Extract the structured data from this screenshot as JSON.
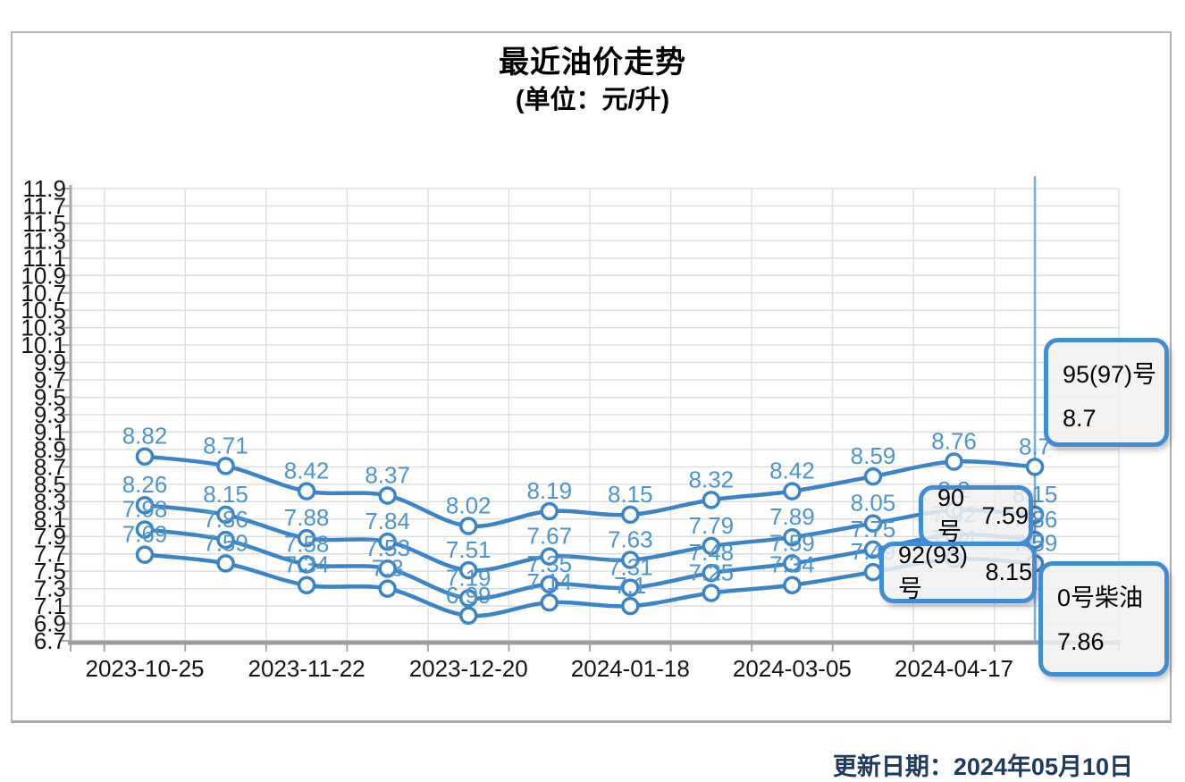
{
  "title": "最近油价走势",
  "subtitle": "(单位：元/升)",
  "update_note": "更新日期：2024年05月10日",
  "chart_data": {
    "type": "line",
    "title": "最近油价走势",
    "unit": "元/升",
    "num_points": 12,
    "x_tick_labels": [
      "2023-10-25",
      "2023-11-22",
      "2023-12-20",
      "2024-01-18",
      "2024-03-05",
      "2024-04-17"
    ],
    "x_label_point_indices": [
      0,
      2,
      4,
      6,
      8,
      10
    ],
    "y_axis": {
      "min": 6.7,
      "max": 11.9,
      "step": 0.2,
      "tick_labels": [
        "11.9",
        "11.7",
        "11.5",
        "11.3",
        "11.1",
        "10.9",
        "10.7",
        "10.5",
        "10.3",
        "10.1",
        "9.9",
        "9.7",
        "9.5",
        "9.3",
        "9.1",
        "8.9",
        "8.7",
        "8.5",
        "8.3",
        "8.1",
        "7.9",
        "7.7",
        "7.5",
        "7.3",
        "7.1",
        "6.9",
        "6.7"
      ]
    },
    "grid": true,
    "legend_position": "none",
    "crosshair_point_index": 11,
    "line_color": "#3b84c7",
    "series": [
      {
        "name": "95(97)号",
        "values": [
          8.82,
          8.71,
          8.42,
          8.37,
          8.02,
          8.19,
          8.15,
          8.32,
          8.42,
          8.59,
          8.76,
          8.7
        ],
        "labels": [
          "8.82",
          "8.71",
          "8.42",
          "8.37",
          "8.02",
          "8.19",
          "8.15",
          "8.32",
          "8.42",
          "8.59",
          "8.76",
          "8.7"
        ]
      },
      {
        "name": "92(93)号",
        "values": [
          8.26,
          8.15,
          7.88,
          7.84,
          7.51,
          7.67,
          7.63,
          7.79,
          7.89,
          8.05,
          8.2,
          8.15
        ],
        "labels": [
          "8.26",
          "8.15",
          "7.88",
          "7.84",
          "7.51",
          "7.67",
          "7.63",
          "7.79",
          "7.89",
          "8.05",
          "8.2",
          "8.15"
        ]
      },
      {
        "name": "0号柴油",
        "values": [
          7.98,
          7.86,
          7.58,
          7.53,
          7.19,
          7.35,
          7.31,
          7.48,
          7.59,
          7.75,
          7.92,
          7.86
        ],
        "labels": [
          "7.98",
          "7.86",
          "7.58",
          "7.53",
          "7.19",
          "7.35",
          "7.31",
          "7.48",
          "7.59",
          "7.75",
          "7.92",
          "7.86"
        ]
      },
      {
        "name": "90号",
        "values": [
          7.69,
          7.59,
          7.34,
          7.3,
          6.99,
          7.14,
          7.1,
          7.25,
          7.34,
          7.49,
          7.64,
          7.59
        ],
        "labels": [
          "7.69",
          "7.59",
          "7.34",
          "7.3",
          "6.99",
          "7.14",
          "7.1",
          "7.25",
          "7.34",
          "7.49",
          "7.64",
          "7.59"
        ]
      }
    ]
  },
  "tooltips": [
    {
      "name": "95(97)号",
      "value": "8.7"
    },
    {
      "name": "90号",
      "value": "7.59"
    },
    {
      "name": "92(93)号",
      "value": "8.15"
    },
    {
      "name": "0号柴油",
      "value": "7.86"
    }
  ],
  "colors": {
    "line": "#3b84c7",
    "data_label": "#4d94d0",
    "crosshair": "#76afdf",
    "grid_h": "#dadada",
    "grid_v": "#d8dde3",
    "axis": "#a6a6a6",
    "tooltip_border": "#3f8dd4",
    "update_text": "#1f3a5f"
  }
}
